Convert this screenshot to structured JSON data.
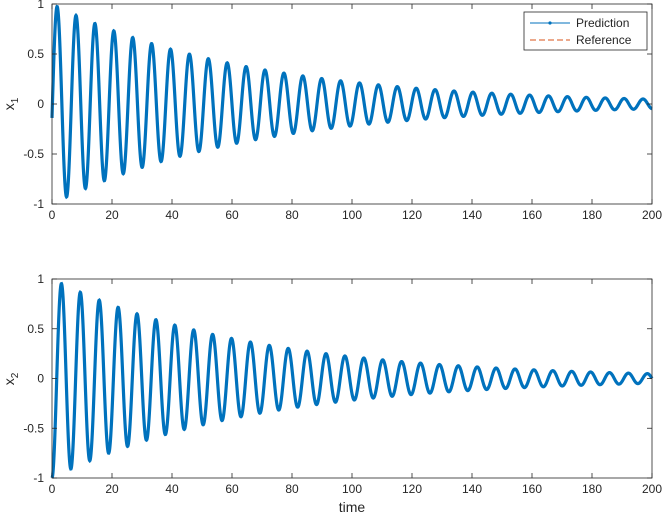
{
  "colors": {
    "prediction": "#0072BD",
    "reference": "#D95319",
    "axis": "#262626",
    "background": "#ffffff"
  },
  "chart_data": [
    {
      "type": "line",
      "ylabel": "x",
      "ylabel_sub": "1",
      "xlabel": "",
      "xlim": [
        0,
        200
      ],
      "ylim": [
        -1,
        1
      ],
      "xticks": [
        0,
        20,
        40,
        60,
        80,
        100,
        120,
        140,
        160,
        180,
        200
      ],
      "xtick_labels": [
        "0",
        "20",
        "40",
        "60",
        "80",
        "100",
        "120",
        "140",
        "160",
        "180",
        "200"
      ],
      "yticks": [
        -1,
        -0.5,
        0,
        0.5,
        1
      ],
      "ytick_labels": [
        "-1",
        "-0.5",
        "0",
        "0.5",
        "1"
      ],
      "grid": false,
      "legend": {
        "placement": "top-right",
        "entries": [
          "Prediction",
          "Reference"
        ]
      },
      "signal": {
        "form": "A * exp(-d*t) * sin(2*pi*t/P + phi)",
        "amplitude": 1.0,
        "decay": 0.0152,
        "period": 6.3,
        "phase": -0.14,
        "t_start": 0,
        "t_end": 200
      },
      "series": [
        {
          "name": "Prediction",
          "style": "solid line with point markers"
        },
        {
          "name": "Reference",
          "style": "dashed line"
        }
      ]
    },
    {
      "type": "line",
      "ylabel": "x",
      "ylabel_sub": "2",
      "xlabel": "time",
      "xlim": [
        0,
        200
      ],
      "ylim": [
        -1,
        1
      ],
      "xticks": [
        0,
        20,
        40,
        60,
        80,
        100,
        120,
        140,
        160,
        180,
        200
      ],
      "xtick_labels": [
        "0",
        "20",
        "40",
        "60",
        "80",
        "100",
        "120",
        "140",
        "160",
        "180",
        "200"
      ],
      "yticks": [
        -1,
        -0.5,
        0,
        0.5,
        1
      ],
      "ytick_labels": [
        "-1",
        "-0.5",
        "0",
        "0.5",
        "1"
      ],
      "grid": false,
      "legend": null,
      "signal": {
        "form": "A * exp(-d*t) * sin(2*pi*t/P + phi)",
        "amplitude": 1.0,
        "decay": 0.0152,
        "period": 6.3,
        "phase": -1.57,
        "t_start": 0,
        "t_end": 200
      },
      "series": [
        {
          "name": "Prediction",
          "style": "solid line with point markers"
        },
        {
          "name": "Reference",
          "style": "dashed line"
        }
      ]
    }
  ]
}
